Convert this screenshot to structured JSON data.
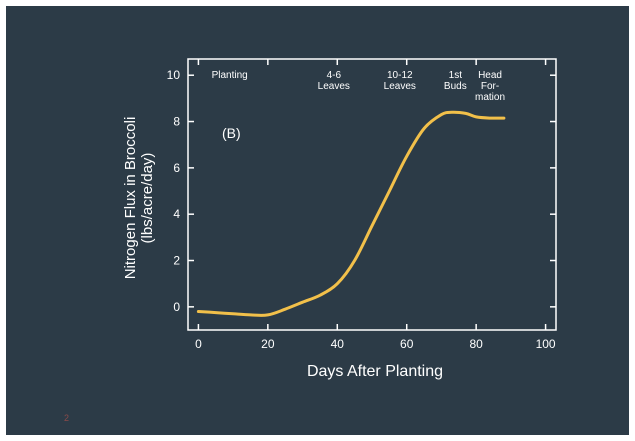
{
  "slide": {
    "page_number": "2",
    "background": "#2c3b47"
  },
  "chart_data": {
    "type": "line",
    "title": "",
    "panel_label": "(B)",
    "xlabel": "Days After Planting",
    "ylabel": [
      "Nitrogen Flux in Broccoli",
      "(lbs/acre/day)"
    ],
    "xlim": [
      -3,
      103
    ],
    "ylim": [
      -1,
      10.7
    ],
    "xticks": [
      0,
      20,
      40,
      60,
      80,
      100
    ],
    "yticks": [
      0,
      2,
      4,
      6,
      8,
      10
    ],
    "grid": false,
    "line_color": "#f2c04a",
    "axis_color": "#ffffff",
    "series": [
      {
        "x": [
          0,
          5,
          10,
          15,
          20,
          25,
          30,
          35,
          40,
          45,
          50,
          55,
          60,
          65,
          70,
          73,
          77,
          80,
          84,
          88
        ],
        "values": [
          -0.2,
          -0.25,
          -0.3,
          -0.35,
          -0.35,
          -0.1,
          0.2,
          0.5,
          1.0,
          2.0,
          3.5,
          5.0,
          6.5,
          7.7,
          8.3,
          8.4,
          8.35,
          8.2,
          8.15,
          8.15
        ]
      }
    ],
    "stages": [
      {
        "x": 9,
        "lines": [
          "Planting"
        ]
      },
      {
        "x": 39,
        "lines": [
          "4-6",
          "Leaves"
        ]
      },
      {
        "x": 58,
        "lines": [
          "10-12",
          "Leaves"
        ]
      },
      {
        "x": 74,
        "lines": [
          "1st",
          "Buds"
        ]
      },
      {
        "x": 84,
        "lines": [
          "Head",
          "For-",
          "mation"
        ]
      }
    ]
  }
}
